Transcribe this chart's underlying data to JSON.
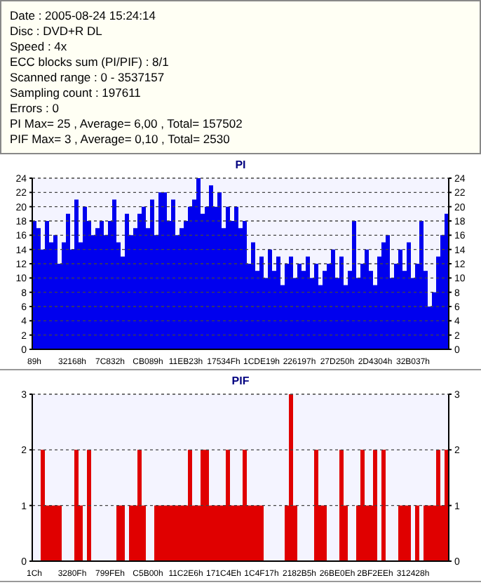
{
  "chart_data": [
    {
      "type": "other",
      "annotations": [
        "Date : 2005-08-24 15:24:14",
        "Disc : DVD+R DL",
        "Speed : 4x",
        "ECC blocks sum (PI/PIF) : 8/1",
        "Scanned range : 0 - 3537157",
        "Sampling count : 197611",
        "Errors : 0",
        "PI Max= 25 , Average= 6,00 , Total= 157502",
        "PIF Max= 3 , Average= 0,10 , Total= 2530"
      ]
    },
    {
      "type": "bar",
      "title": "PI",
      "categories": [
        "89h",
        null,
        null,
        null,
        null,
        null,
        null,
        null,
        null,
        "32168h",
        null,
        null,
        null,
        null,
        null,
        null,
        null,
        null,
        "7C832h",
        null,
        null,
        null,
        null,
        null,
        null,
        null,
        null,
        "CB089h",
        null,
        null,
        null,
        null,
        null,
        null,
        null,
        null,
        "11EB23h",
        null,
        null,
        null,
        null,
        null,
        null,
        null,
        null,
        "17534Fh",
        null,
        null,
        null,
        null,
        null,
        null,
        null,
        null,
        "1CDE19h",
        null,
        null,
        null,
        null,
        null,
        null,
        null,
        null,
        "226197h",
        null,
        null,
        null,
        null,
        null,
        null,
        null,
        null,
        "27D250h",
        null,
        null,
        null,
        null,
        null,
        null,
        null,
        null,
        "2D4304h",
        null,
        null,
        null,
        null,
        null,
        null,
        null,
        null,
        "32B037h",
        null,
        null,
        null,
        null,
        null,
        null,
        null,
        null
      ],
      "series": [
        {
          "color": "#0000ee",
          "values": [
            18,
            17,
            14,
            18,
            15,
            16,
            12,
            15,
            19,
            14,
            21,
            15,
            20,
            18,
            16,
            17,
            18,
            16,
            18,
            21,
            15,
            13,
            19,
            16,
            17,
            19,
            20,
            17,
            21,
            16,
            22,
            22,
            18,
            21,
            16,
            17,
            18,
            20,
            21,
            24,
            19,
            20,
            23,
            20,
            22,
            17,
            20,
            18,
            20,
            17,
            18,
            12,
            15,
            11,
            13,
            10,
            14,
            11,
            13,
            9,
            12,
            13,
            10,
            12,
            11,
            13,
            10,
            12,
            9,
            11,
            12,
            14,
            10,
            13,
            9,
            11,
            18,
            10,
            12,
            14,
            11,
            9,
            13,
            15,
            16,
            10,
            12,
            14,
            11,
            15,
            10,
            12,
            18,
            11,
            6,
            8,
            13,
            16,
            19
          ]
        }
      ],
      "ylim": [
        0,
        24
      ],
      "yticks": [
        0,
        2,
        4,
        6,
        8,
        10,
        12,
        14,
        16,
        18,
        20,
        22,
        24
      ],
      "y2lim": [
        0,
        24
      ],
      "y2ticks": [
        0,
        2,
        4,
        6,
        8,
        10,
        12,
        14,
        16,
        18,
        20,
        22,
        24
      ],
      "grid": "y"
    },
    {
      "type": "bar",
      "title": "PIF",
      "categories": [
        "1Ch",
        null,
        null,
        null,
        null,
        null,
        null,
        null,
        null,
        "3280Fh",
        null,
        null,
        null,
        null,
        null,
        null,
        null,
        null,
        "799FEh",
        null,
        null,
        null,
        null,
        null,
        null,
        null,
        null,
        "C5B00h",
        null,
        null,
        null,
        null,
        null,
        null,
        null,
        null,
        "11C2E6h",
        null,
        null,
        null,
        null,
        null,
        null,
        null,
        null,
        "171C4Eh",
        null,
        null,
        null,
        null,
        null,
        null,
        null,
        null,
        "1C4F17h",
        null,
        null,
        null,
        null,
        null,
        null,
        null,
        null,
        "2182B5h",
        null,
        null,
        null,
        null,
        null,
        null,
        null,
        null,
        "26BE0Eh",
        null,
        null,
        null,
        null,
        null,
        null,
        null,
        null,
        "2BF2EEh",
        null,
        null,
        null,
        null,
        null,
        null,
        null,
        null,
        "312428h",
        null,
        null,
        null,
        null,
        null,
        null,
        null,
        null
      ],
      "series": [
        {
          "color": "#e00000",
          "values": [
            0,
            0,
            2,
            1,
            1,
            1,
            1,
            0,
            0,
            0,
            2,
            1,
            0,
            2,
            0,
            0,
            0,
            0,
            0,
            0,
            1,
            1,
            0,
            1,
            1,
            2,
            1,
            0,
            0,
            1,
            1,
            1,
            1,
            1,
            1,
            1,
            1,
            2,
            1,
            1,
            2,
            2,
            1,
            1,
            1,
            1,
            2,
            1,
            1,
            1,
            2,
            1,
            1,
            1,
            1,
            0,
            0,
            0,
            0,
            0,
            1,
            3,
            1,
            0,
            0,
            0,
            0,
            2,
            1,
            1,
            0,
            0,
            0,
            2,
            1,
            0,
            0,
            1,
            2,
            1,
            1,
            2,
            0,
            2,
            0,
            0,
            0,
            1,
            1,
            1,
            0,
            1,
            0,
            1,
            1,
            1,
            2,
            1,
            2
          ]
        }
      ],
      "ylim": [
        0,
        3
      ],
      "yticks": [
        0,
        1,
        2,
        3
      ],
      "y2lim": [
        0,
        3
      ],
      "y2ticks": [
        0,
        1,
        2,
        3
      ],
      "grid": "y"
    }
  ]
}
